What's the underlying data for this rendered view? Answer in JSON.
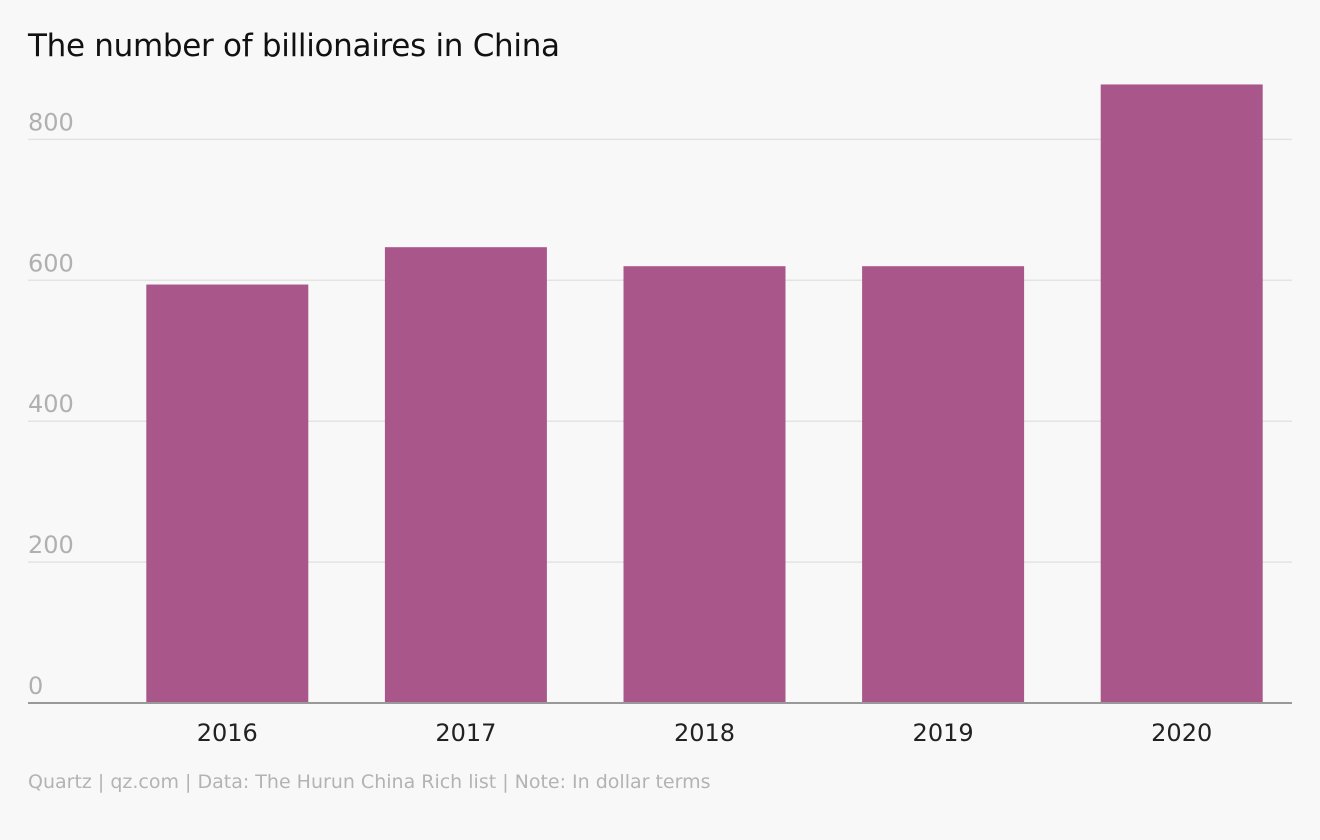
{
  "chart_data": {
    "type": "bar",
    "title": "The number of billionaires in China",
    "xlabel": "",
    "ylabel": "",
    "categories": [
      "2016",
      "2017",
      "2018",
      "2019",
      "2020"
    ],
    "values": [
      594,
      647,
      620,
      620,
      878
    ],
    "ylim": [
      0,
      878
    ],
    "yticks": [
      0,
      200,
      400,
      600,
      800
    ],
    "grid": true,
    "legend": "none",
    "bar_color": "#a9578a"
  },
  "footer": {
    "source": "Quartz | qz.com | Data: The Hurun China Rich list | Note: In dollar terms"
  },
  "colors": {
    "background": "#f8f8f8",
    "grid": "#e3e3e3",
    "axis": "#999999",
    "y_tick_text": "#b0b0b0",
    "x_tick_text": "#222222"
  }
}
